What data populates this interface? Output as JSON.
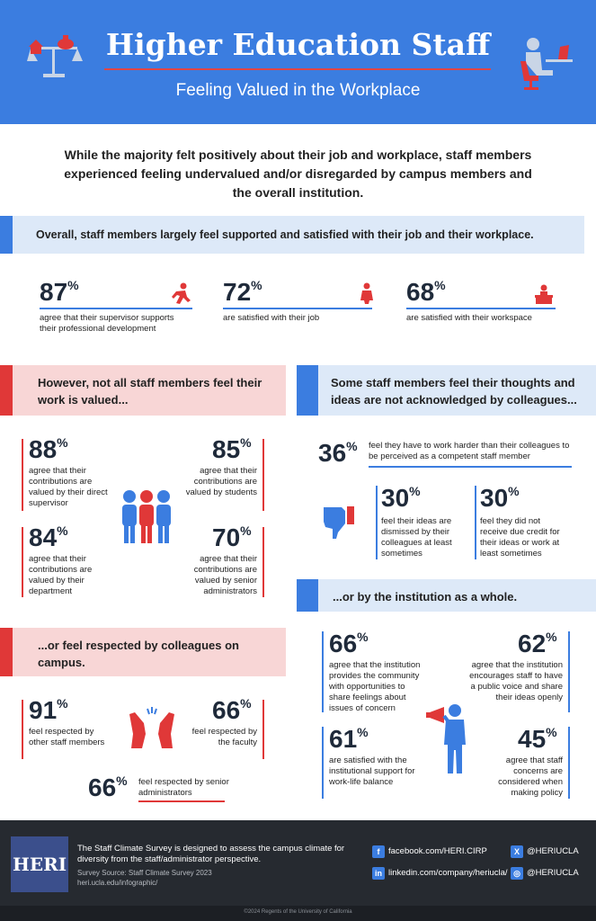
{
  "header": {
    "title": "Higher Education Staff",
    "subtitle": "Feeling Valued in the Workplace"
  },
  "intro": "While the majority felt positively about their job and workplace, staff members experienced feeling undervalued and/or disregarded by campus members and the overall institution.",
  "overall": {
    "heading": "Overall, staff members largely feel supported and satisfied with their job and their workplace.",
    "stats": [
      {
        "value": "87",
        "unit": "%",
        "label": "agree that their supervisor supports their professional development"
      },
      {
        "value": "72",
        "unit": "%",
        "label": "are satisfied with their job"
      },
      {
        "value": "68",
        "unit": "%",
        "label": "are satisfied with their workspace"
      }
    ]
  },
  "valued": {
    "heading": "However, not all staff members feel their work is valued...",
    "stats": [
      {
        "value": "88",
        "unit": "%",
        "label": "agree that their contributions are valued by their direct supervisor"
      },
      {
        "value": "85",
        "unit": "%",
        "label": "agree that their contributions are valued by students"
      },
      {
        "value": "84",
        "unit": "%",
        "label": "agree that their contributions are valued by their department"
      },
      {
        "value": "70",
        "unit": "%",
        "label": "agree that their contributions are valued by senior administrators"
      }
    ]
  },
  "respected": {
    "heading": "...or feel respected by colleagues on campus.",
    "stats": [
      {
        "value": "91",
        "unit": "%",
        "label": "feel respected by other staff members"
      },
      {
        "value": "66",
        "unit": "%",
        "label": "feel respected by the faculty"
      },
      {
        "value": "66",
        "unit": "%",
        "label": "feel respected by senior administrators"
      }
    ]
  },
  "ideas": {
    "heading": "Some staff members feel their thoughts and ideas are not acknowledged by colleagues...",
    "stats": [
      {
        "value": "36",
        "unit": "%",
        "label": "feel they have to work harder than their colleagues to be perceived as a competent staff member"
      },
      {
        "value": "30",
        "unit": "%",
        "label": "feel their ideas are dismissed by their colleagues at least sometimes"
      },
      {
        "value": "30",
        "unit": "%",
        "label": "feel they did not receive due credit for their ideas or work at least sometimes"
      }
    ]
  },
  "institution": {
    "heading": "...or by the institution as a whole.",
    "stats": [
      {
        "value": "66",
        "unit": "%",
        "label": "agree that the institution provides the community with opportunities to share feelings about issues of concern"
      },
      {
        "value": "62",
        "unit": "%",
        "label": "agree that the institution encourages staff to have a public voice and share their ideas openly"
      },
      {
        "value": "61",
        "unit": "%",
        "label": "are satisfied with the institutional support for work-life balance"
      },
      {
        "value": "45",
        "unit": "%",
        "label": "agree that staff concerns are considered when making policy"
      }
    ]
  },
  "footer": {
    "logo": "HERI",
    "description": "The Staff Climate Survey is designed to assess the campus climate for diversity from the staff/administrator perspective.",
    "source": "Survey Source: Staff Climate Survey 2023",
    "url": "heri.ucla.edu/infographic/",
    "facebook": "facebook.com/HERI.CIRP",
    "x": "@HERIUCLA",
    "linkedin": "linkedin.com/company/heriucla/",
    "instagram": "@HERIUCLA",
    "copyright": "©2024 Regents of the University of California"
  },
  "colors": {
    "blue": "#3b7de0",
    "red": "#e03838",
    "light_blue": "#dde9f8",
    "pink": "#f8d6d6",
    "dark": "#262a30"
  }
}
